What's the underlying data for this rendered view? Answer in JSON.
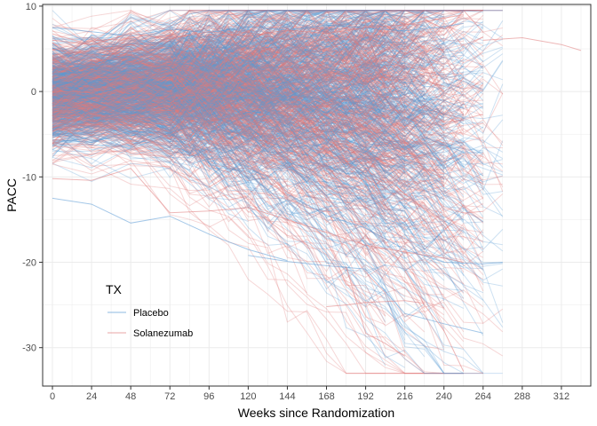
{
  "chart_data": {
    "type": "line",
    "title": "",
    "xlabel": "Weeks since Randomization",
    "ylabel": "PACC",
    "xlim": [
      -6,
      330
    ],
    "ylim": [
      -34.5,
      10.2
    ],
    "x_ticks": [
      0,
      24,
      48,
      72,
      96,
      120,
      144,
      168,
      192,
      216,
      240,
      264,
      288,
      312
    ],
    "y_ticks": [
      10,
      0,
      -10,
      -20,
      -30
    ],
    "x_minor_step": 12,
    "y_minor_step": 5,
    "grid": true,
    "legend": {
      "title": "TX",
      "position": "inside-bottom-left",
      "entries": [
        "Placebo",
        "Solanezumab"
      ]
    },
    "series": [
      {
        "name": "Placebo",
        "color": "#5b9bd5",
        "opacity": 0.3,
        "subjects": 600,
        "mean_y_at_x": [
          [
            0,
            -0.5
          ],
          [
            48,
            0.3
          ],
          [
            96,
            0.5
          ],
          [
            144,
            0.3
          ],
          [
            192,
            -0.5
          ],
          [
            240,
            -1.5
          ],
          [
            264,
            -2.0
          ]
        ],
        "sd_y_at_x": [
          [
            0,
            2.8
          ],
          [
            96,
            3.5
          ],
          [
            192,
            5.0
          ],
          [
            264,
            6.5
          ]
        ],
        "highlighted_trajectories": [
          {
            "x": [
              0,
              24,
              48,
              72,
              96,
              120,
              144
            ],
            "y": [
              -12.5,
              -13.2,
              -15.4,
              -14.6,
              -16.7,
              -18.5,
              -19.8
            ]
          },
          {
            "x": [
              120,
              144,
              168,
              192,
              216,
              240,
              264
            ],
            "y": [
              -19.2,
              -19.9,
              -20.4,
              -20.8,
              -26.0,
              -27.2,
              -28.3
            ]
          },
          {
            "x": [
              144,
              168,
              192,
              216,
              240,
              264,
              276
            ],
            "y": [
              -12.0,
              -14.5,
              -16.0,
              -18.5,
              -20.0,
              -20.2,
              -20.0
            ]
          },
          {
            "x": [
              0,
              24,
              48,
              72,
              96,
              120,
              144,
              168,
              192,
              216,
              240,
              252
            ],
            "y": [
              7.5,
              7.0,
              6.5,
              7.3,
              6.9,
              7.6,
              7.2,
              7.8,
              7.4,
              7.1,
              7.6,
              8.0
            ]
          }
        ]
      },
      {
        "name": "Solanezumab",
        "color": "#e07b7b",
        "opacity": 0.3,
        "subjects": 600,
        "mean_y_at_x": [
          [
            0,
            -0.3
          ],
          [
            48,
            0.5
          ],
          [
            96,
            0.8
          ],
          [
            144,
            0.6
          ],
          [
            192,
            0.0
          ],
          [
            240,
            -1.0
          ],
          [
            264,
            -1.5
          ]
        ],
        "sd_y_at_x": [
          [
            0,
            2.8
          ],
          [
            96,
            3.5
          ],
          [
            192,
            5.0
          ],
          [
            264,
            6.5
          ]
        ],
        "highlighted_trajectories": [
          {
            "x": [
              168,
              180,
              192,
              216,
              228
            ],
            "y": [
              -25.2,
              -25.0,
              -24.7,
              -24.5,
              -24.8
            ]
          },
          {
            "x": [
              180,
              192,
              204,
              216
            ],
            "y": [
              -20.5,
              -28.3,
              -29.5,
              -31.0
            ]
          },
          {
            "x": [
              216,
              228,
              240,
              252
            ],
            "y": [
              -21.0,
              -25.0,
              -28.0,
              -32.8
            ]
          },
          {
            "x": [
              0,
              24,
              48,
              72,
              96,
              120,
              144,
              168,
              192,
              216,
              240,
              252
            ],
            "y": [
              -10.2,
              -10.4,
              -9.0,
              -14.2,
              -14.0,
              -13.6,
              -15.0,
              -16.5,
              -18.0,
              -18.8,
              -19.5,
              -20.0
            ]
          },
          {
            "x": [
              264,
              288,
              312,
              324
            ],
            "y": [
              6.0,
              6.3,
              5.5,
              4.8
            ]
          },
          {
            "x": [
              0,
              24,
              48,
              72,
              96,
              120,
              144,
              168,
              192,
              216,
              240,
              252
            ],
            "y": [
              6.0,
              5.5,
              6.8,
              6.2,
              7.0,
              6.5,
              7.2,
              6.8,
              7.5,
              7.8,
              8.6,
              9.0
            ]
          }
        ]
      }
    ]
  }
}
